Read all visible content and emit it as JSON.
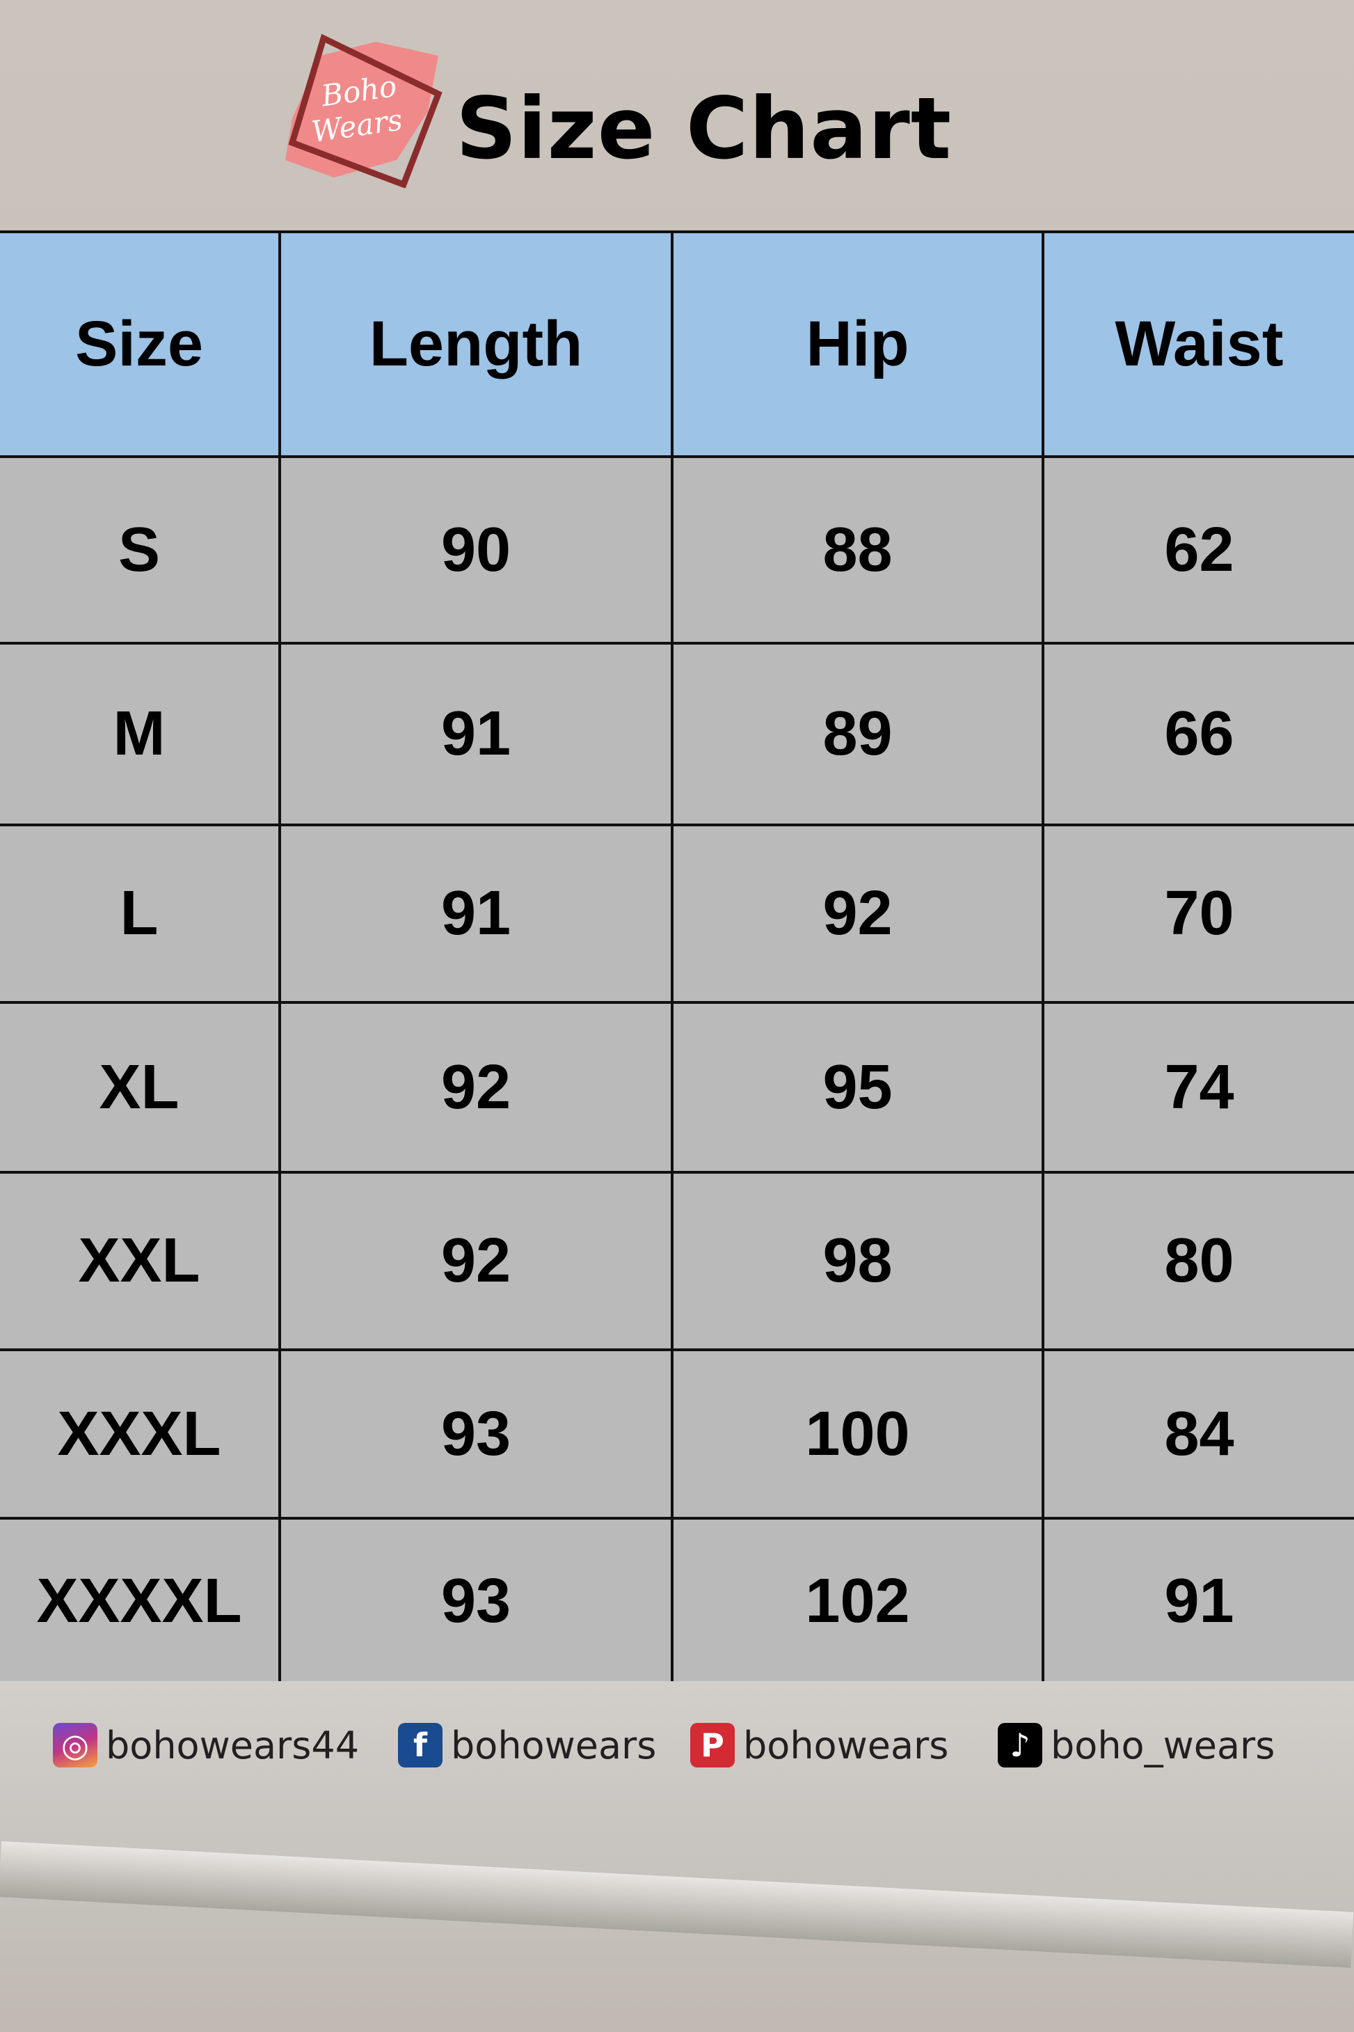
{
  "header": {
    "logo_text": "Boho Wears",
    "title": "Size Chart"
  },
  "table": {
    "columns": [
      "Size",
      "Length",
      "Hip",
      "Waist"
    ],
    "rows": [
      [
        "S",
        "90",
        "88",
        "62"
      ],
      [
        "M",
        "91",
        "89",
        "66"
      ],
      [
        "L",
        "91",
        "92",
        "70"
      ],
      [
        "XL",
        "92",
        "95",
        "74"
      ],
      [
        "XXL",
        "92",
        "98",
        "80"
      ],
      [
        "XXXL",
        "93",
        "100",
        "84"
      ],
      [
        "XXXXL",
        "93",
        "102",
        "91"
      ]
    ]
  },
  "footer": {
    "socials": [
      {
        "icon": "instagram-icon",
        "handle": "bohowears44",
        "color": "#c13584"
      },
      {
        "icon": "facebook-icon",
        "handle": "bohowears",
        "color": "#1a4a8f"
      },
      {
        "icon": "pinterest-icon",
        "handle": "bohowears",
        "color": "#d32a33"
      },
      {
        "icon": "tiktok-icon",
        "handle": "boho_wears",
        "color": "#000000"
      }
    ]
  },
  "colors": {
    "header_row": "#9dc3e6",
    "body_rows": "#bababa",
    "logo_pink": "#f08a8a",
    "logo_frame": "#8b2c2c"
  }
}
